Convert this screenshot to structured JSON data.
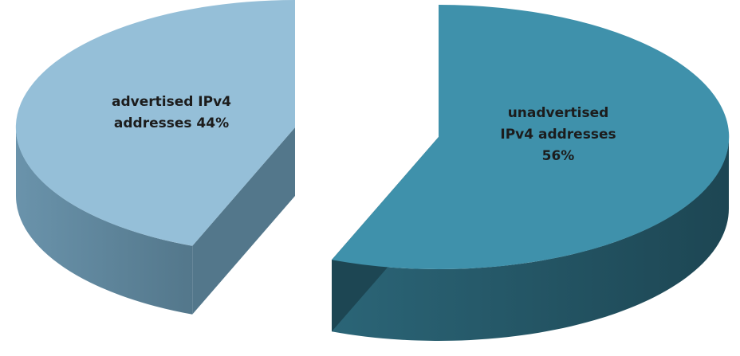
{
  "chart_data": {
    "type": "pie",
    "style": "3d-exploded",
    "slices": [
      {
        "category": "advertised IPv4 addresses",
        "value": 44,
        "label_lines": [
          "advertised IPv4",
          "addresses 44%"
        ],
        "top_color": "#95bfd8",
        "side_color": "#6a93ab",
        "side_dark": "#53778b"
      },
      {
        "category": "unadvertised IPv4 addresses",
        "value": 56,
        "label_lines": [
          "unadvertised",
          "IPv4 addresses",
          "56%"
        ],
        "top_color": "#3f91ab",
        "side_color": "#2b6577",
        "side_dark": "#1d4653"
      }
    ],
    "unit": "%"
  }
}
